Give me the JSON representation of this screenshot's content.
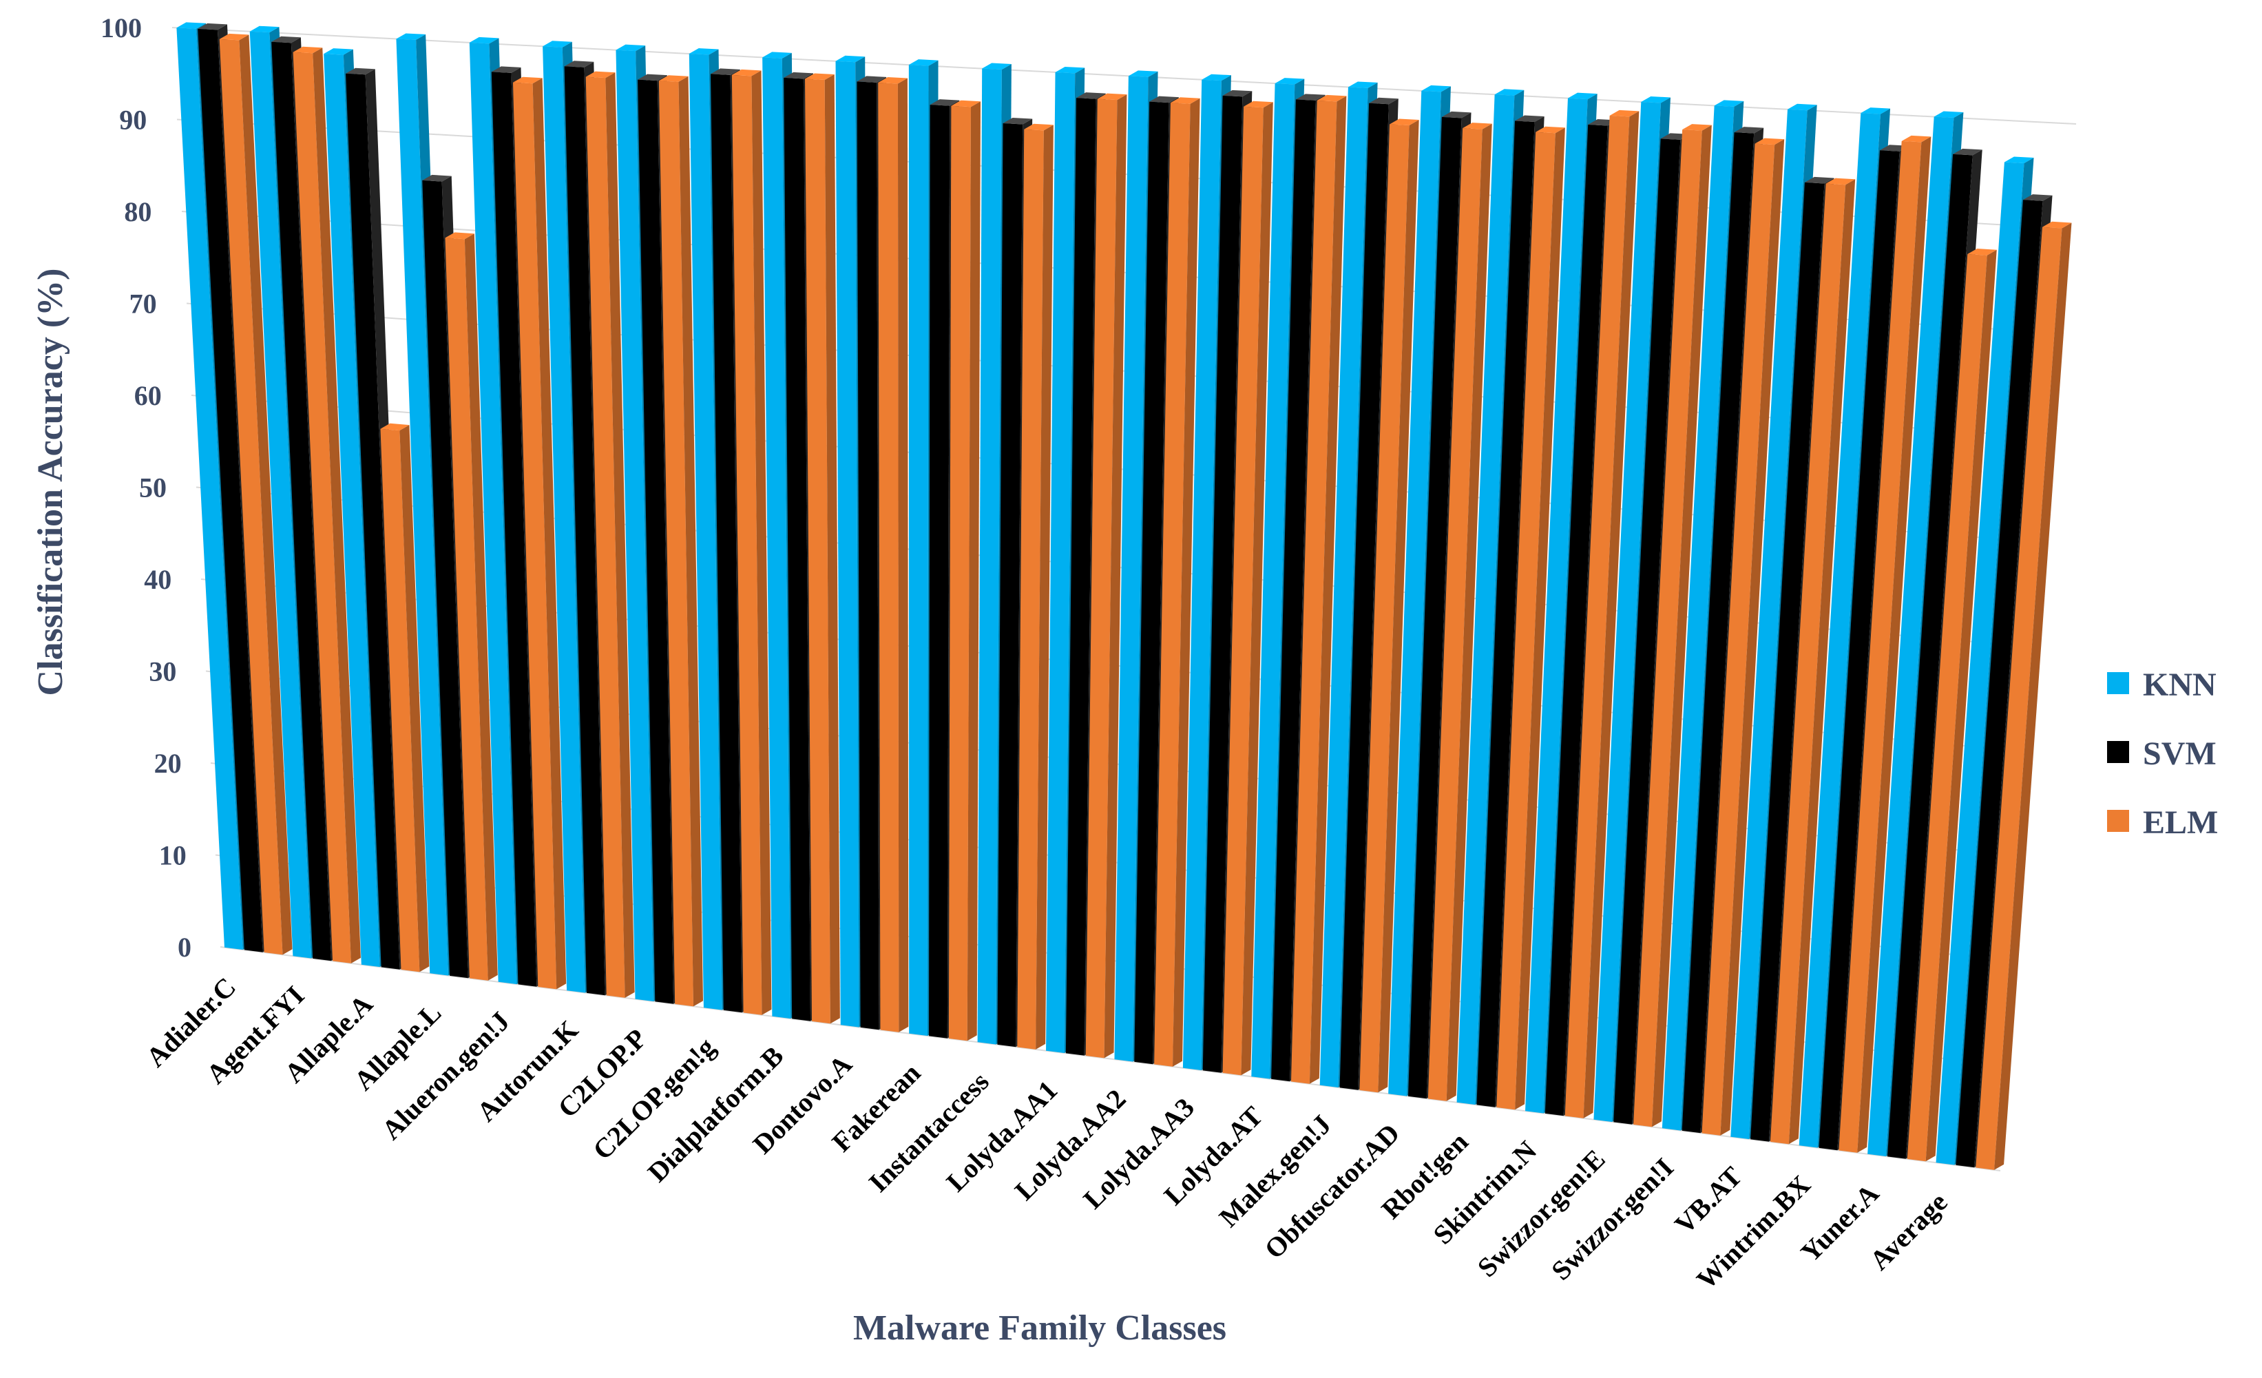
{
  "chart_data": {
    "type": "bar",
    "ylabel": "Classification Accuracy (%)",
    "xlabel": "Malware Family Classes",
    "ylim": [
      0,
      100
    ],
    "yticks": [
      0,
      10,
      20,
      30,
      40,
      50,
      60,
      70,
      80,
      90,
      100
    ],
    "grid": true,
    "legend_position": "right",
    "categories": [
      "Adialer.C",
      "Agent.FYI",
      "Allaple.A",
      "Allaple.L",
      "Alueron.gen!J",
      "Autorun.K",
      "C2LOP.P",
      "C2LOP.gen!g",
      "Dialplatform.B",
      "Dontovo.A",
      "Fakerean",
      "Instantaccess",
      "Lolyda.AA1",
      "Lolyda.AA2",
      "Lolyda.AA3",
      "Lolyda.AT",
      "Malex.gen!J",
      "Obfuscator.AD",
      "Rbot!gen",
      "Skintrim.N",
      "Swizzor.gen!E",
      "Swizzor.gen!I",
      "VB.AT",
      "Wintrim.BX",
      "Yuner.A",
      "Average"
    ],
    "series": [
      {
        "name": "KNN",
        "color": "#00b0f0",
        "values": [
          100,
          100,
          98,
          100,
          100,
          100,
          100,
          100,
          100,
          100,
          100,
          100,
          100,
          100,
          100,
          100,
          100,
          100,
          100,
          100,
          100,
          100,
          100,
          100,
          100,
          96
        ]
      },
      {
        "name": "SVM",
        "color": "#000000",
        "values": [
          100,
          99,
          96,
          85,
          97,
          98,
          97,
          98,
          98,
          98,
          96,
          94.5,
          97.5,
          97.5,
          98.5,
          98.5,
          98.5,
          97.5,
          97.5,
          97.5,
          96.5,
          97.5,
          93,
          96.5,
          96.5,
          92.5
        ]
      },
      {
        "name": "ELM",
        "color": "#ed7d31",
        "values": [
          99,
          98,
          58,
          79,
          96,
          97,
          97,
          98,
          98,
          98,
          96,
          94,
          97.5,
          97.5,
          97.5,
          98.5,
          96.5,
          96.5,
          96.5,
          98.5,
          97.5,
          96.5,
          93,
          97.5,
          87,
          90
        ]
      }
    ]
  }
}
